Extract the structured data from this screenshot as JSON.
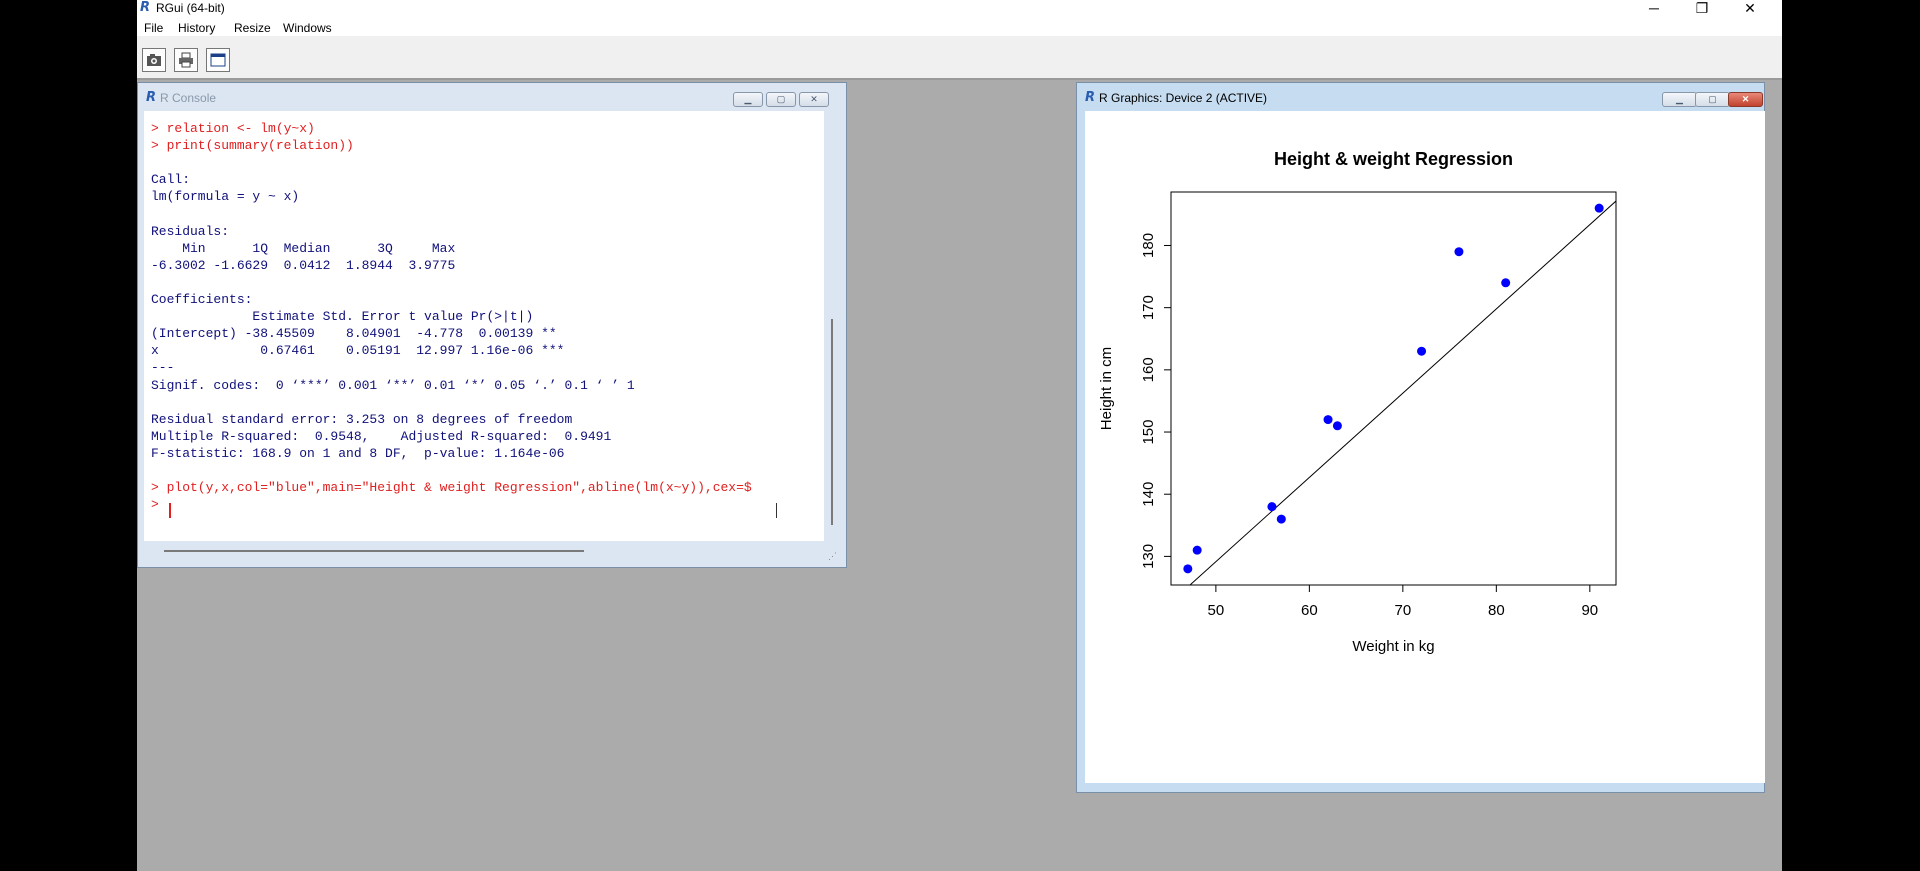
{
  "app": {
    "title": "RGui (64-bit)",
    "menu": [
      "File",
      "History",
      "Resize",
      "Windows"
    ],
    "window_controls": {
      "minimize": "─",
      "restore": "❐",
      "close": "✕"
    }
  },
  "toolbar": {
    "buttons": [
      "open-script-icon",
      "print-icon",
      "new-window-icon"
    ]
  },
  "console": {
    "title": "R Console",
    "lines": [
      {
        "text": "> relation <- lm(y~x)",
        "color": "red"
      },
      {
        "text": "> print(summary(relation))",
        "color": "red"
      },
      {
        "text": "",
        "color": "blue"
      },
      {
        "text": "Call:",
        "color": "blue"
      },
      {
        "text": "lm(formula = y ~ x)",
        "color": "blue"
      },
      {
        "text": "",
        "color": "blue"
      },
      {
        "text": "Residuals:",
        "color": "blue"
      },
      {
        "text": "    Min      1Q  Median      3Q     Max",
        "color": "blue"
      },
      {
        "text": "-6.3002 -1.6629  0.0412  1.8944  3.9775",
        "color": "blue"
      },
      {
        "text": "",
        "color": "blue"
      },
      {
        "text": "Coefficients:",
        "color": "blue"
      },
      {
        "text": "             Estimate Std. Error t value Pr(>|t|)",
        "color": "blue"
      },
      {
        "text": "(Intercept) -38.45509    8.04901  -4.778  0.00139 **",
        "color": "blue"
      },
      {
        "text": "x             0.67461    0.05191  12.997 1.16e-06 ***",
        "color": "blue"
      },
      {
        "text": "---",
        "color": "blue"
      },
      {
        "text": "Signif. codes:  0 ‘***’ 0.001 ‘**’ 0.01 ‘*’ 0.05 ‘.’ 0.1 ‘ ’ 1",
        "color": "blue"
      },
      {
        "text": "",
        "color": "blue"
      },
      {
        "text": "Residual standard error: 3.253 on 8 degrees of freedom",
        "color": "blue"
      },
      {
        "text": "Multiple R-squared:  0.9548,    Adjusted R-squared:  0.9491",
        "color": "blue"
      },
      {
        "text": "F-statistic: 168.9 on 1 and 8 DF,  p-value: 1.164e-06",
        "color": "blue"
      },
      {
        "text": "",
        "color": "blue"
      },
      {
        "text": "> plot(y,x,col=\"blue\",main=\"Height & weight Regression\",abline(lm(x~y)),cex=$",
        "color": "red"
      },
      {
        "text": "> ",
        "color": "red"
      }
    ]
  },
  "graphics": {
    "title": "R Graphics: Device 2 (ACTIVE)",
    "colors": {
      "points": "#0000ff",
      "line": "#000000"
    }
  },
  "chart_data": {
    "type": "scatter",
    "title": "Height & weight Regression",
    "xlabel": "Weight in kg",
    "ylabel": "Height in cm",
    "xlim": [
      45.2,
      92.8
    ],
    "ylim": [
      125.4,
      188.6
    ],
    "xticks": [
      50,
      60,
      70,
      80,
      90
    ],
    "yticks": [
      130,
      140,
      150,
      160,
      170,
      180
    ],
    "points": [
      {
        "x": 47,
        "y": 128
      },
      {
        "x": 48,
        "y": 131
      },
      {
        "x": 56,
        "y": 138
      },
      {
        "x": 57,
        "y": 136
      },
      {
        "x": 62,
        "y": 152
      },
      {
        "x": 63,
        "y": 151
      },
      {
        "x": 72,
        "y": 163
      },
      {
        "x": 76,
        "y": 179
      },
      {
        "x": 81,
        "y": 174
      },
      {
        "x": 91,
        "y": 186
      }
    ],
    "regression_line": {
      "intercept": 61.4,
      "slope": 1.355
    },
    "grid": false
  }
}
